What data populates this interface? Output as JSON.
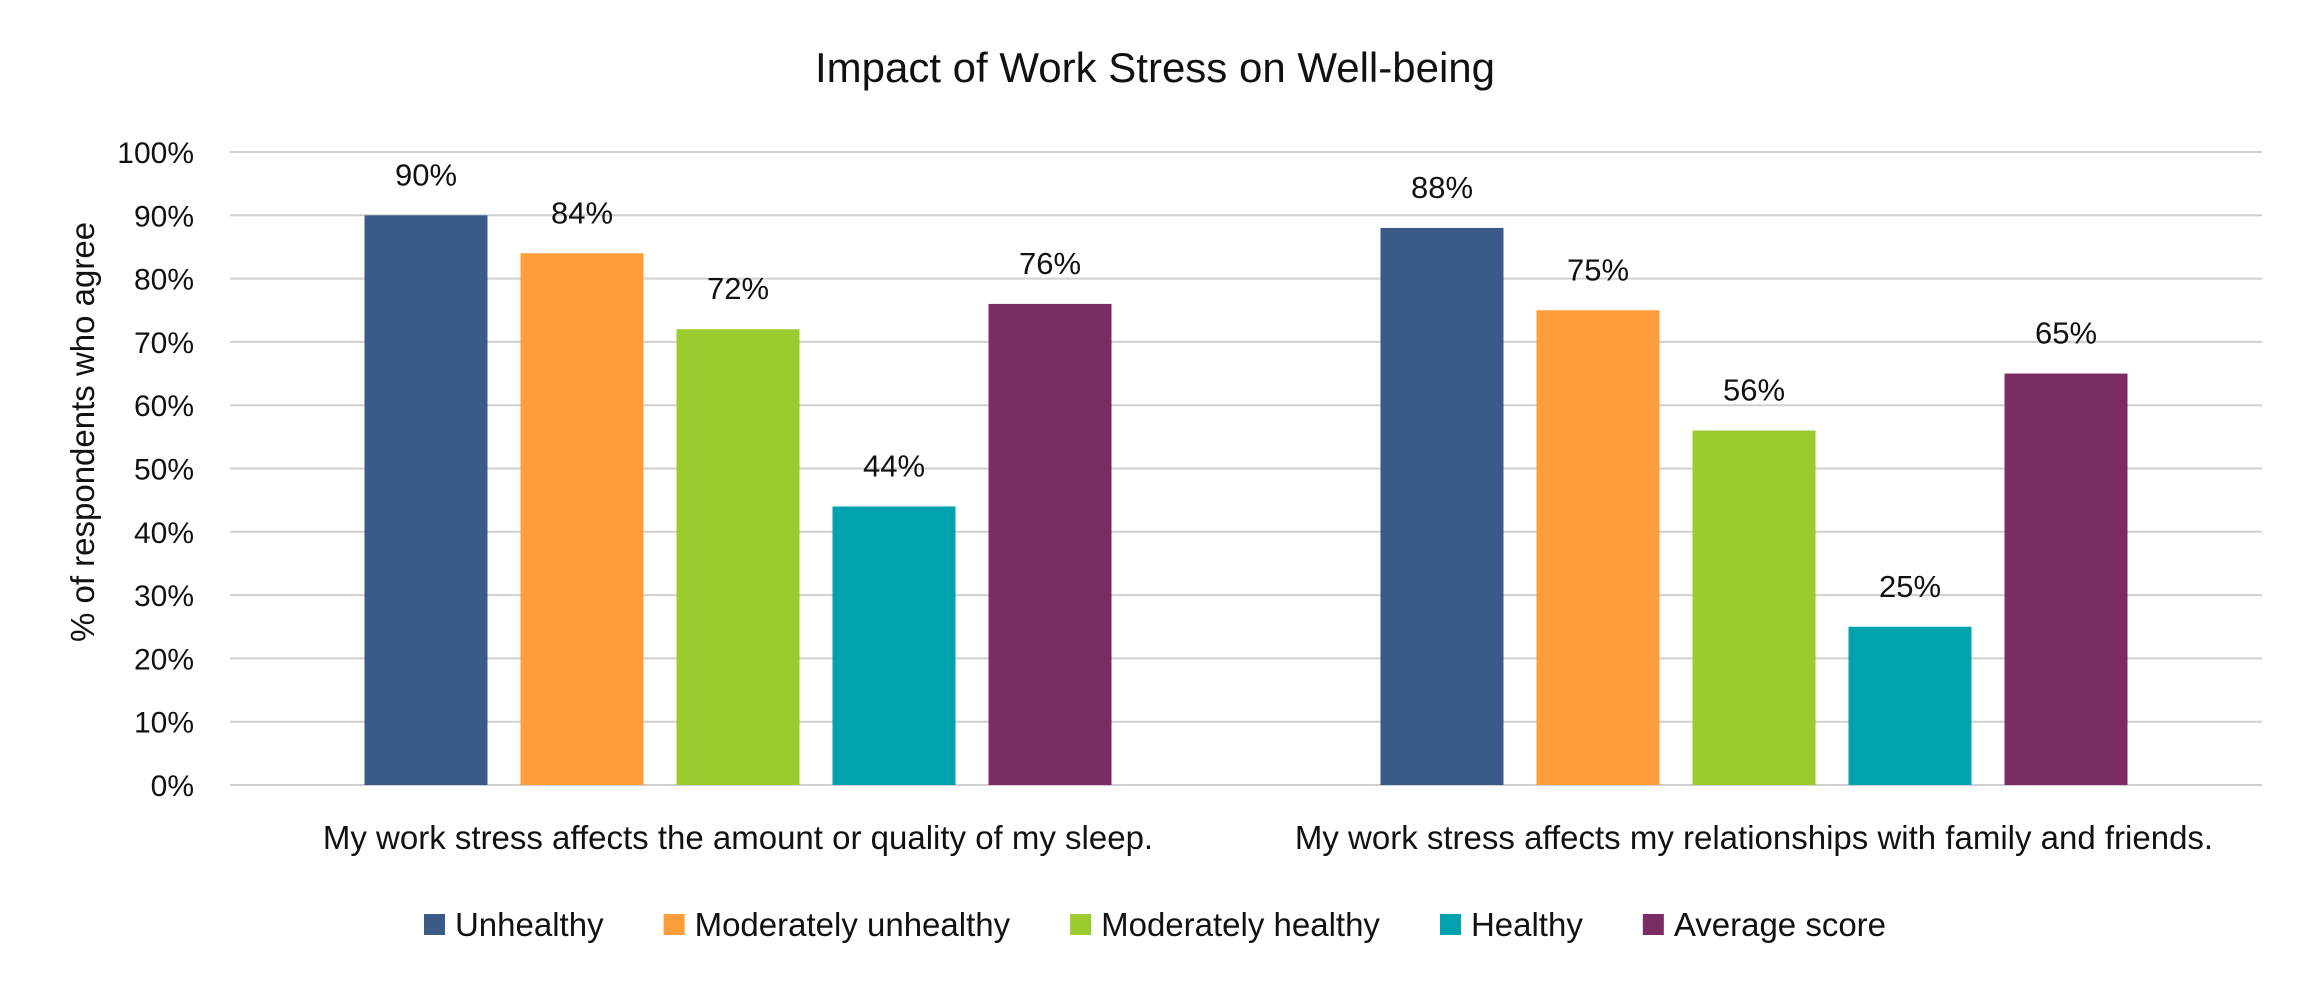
{
  "chart_data": {
    "type": "bar",
    "title": "Impact of Work Stress on Well-being",
    "ylabel": "% of respondents who agree",
    "xlabel": "",
    "ylim": [
      0,
      100
    ],
    "y_ticks": [
      "0%",
      "10%",
      "20%",
      "30%",
      "40%",
      "50%",
      "60%",
      "70%",
      "80%",
      "90%",
      "100%"
    ],
    "grid": true,
    "legend_position": "bottom",
    "categories": [
      "My work stress affects the amount or quality of my sleep.",
      "My work stress affects my relationships with family and friends."
    ],
    "series": [
      {
        "name": "Unhealthy",
        "color": "#3a5a87",
        "values": [
          90,
          88
        ],
        "labels": [
          "90%",
          "88%"
        ]
      },
      {
        "name": "Moderately unhealthy",
        "color": "#fd9e3a",
        "values": [
          84,
          75
        ],
        "labels": [
          "84%",
          "75%"
        ]
      },
      {
        "name": "Moderately healthy",
        "color": "#9ccb2f",
        "values": [
          72,
          56
        ],
        "labels": [
          "72%",
          "56%"
        ]
      },
      {
        "name": "Healthy",
        "color": "#00a3ad",
        "values": [
          44,
          25
        ],
        "labels": [
          "44%",
          "25%"
        ]
      },
      {
        "name": "Average score",
        "color": "#7b2c63",
        "values": [
          76,
          65
        ],
        "labels": [
          "76%",
          "65%"
        ]
      }
    ]
  }
}
